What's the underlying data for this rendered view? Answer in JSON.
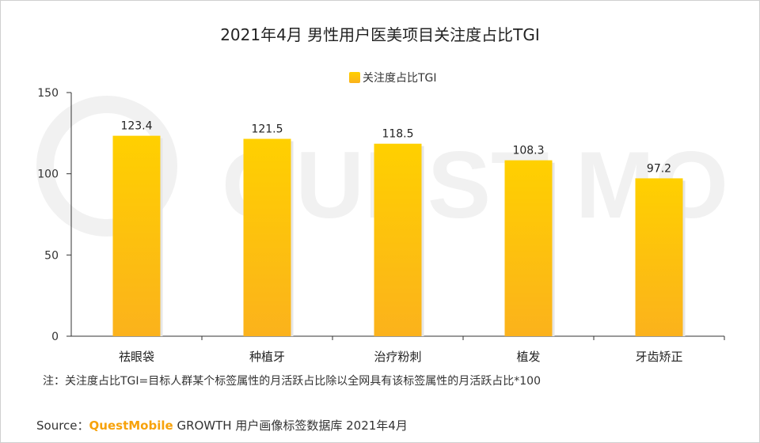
{
  "title": "2021年4月 男性用户医美项目关注度占比TGI",
  "note": "注：关注度占比TGI=目标人群某个标签属性的月活跃占比除以全网具有该标签属性的月活跃占比*100",
  "source": {
    "prefix": "Source：",
    "brand": "QuestMobile",
    "suffix": "GROWTH 用户画像标签数据库 2021年4月"
  },
  "watermark": "QUEST MOBILE",
  "colors": {
    "bar_top": "#ffd000",
    "bar_bottom": "#fbb21c",
    "axis": "#333333",
    "text": "#222222",
    "brand": "#f7a20a"
  },
  "chart_data": {
    "type": "bar",
    "title": "2021年4月 男性用户医美项目关注度占比TGI",
    "categories": [
      "祛眼袋",
      "种植牙",
      "治疗粉刺",
      "植发",
      "牙齿矫正"
    ],
    "series": [
      {
        "name": "关注度占比TGI",
        "values": [
          123.4,
          121.5,
          118.5,
          108.3,
          97.2
        ]
      }
    ],
    "data_labels": [
      "123.4",
      "121.5",
      "118.5",
      "108.3",
      "97.2"
    ],
    "ylim": [
      0,
      150
    ],
    "yticks": [
      0,
      50,
      100,
      150
    ],
    "legend": "top-center",
    "grid": false
  }
}
